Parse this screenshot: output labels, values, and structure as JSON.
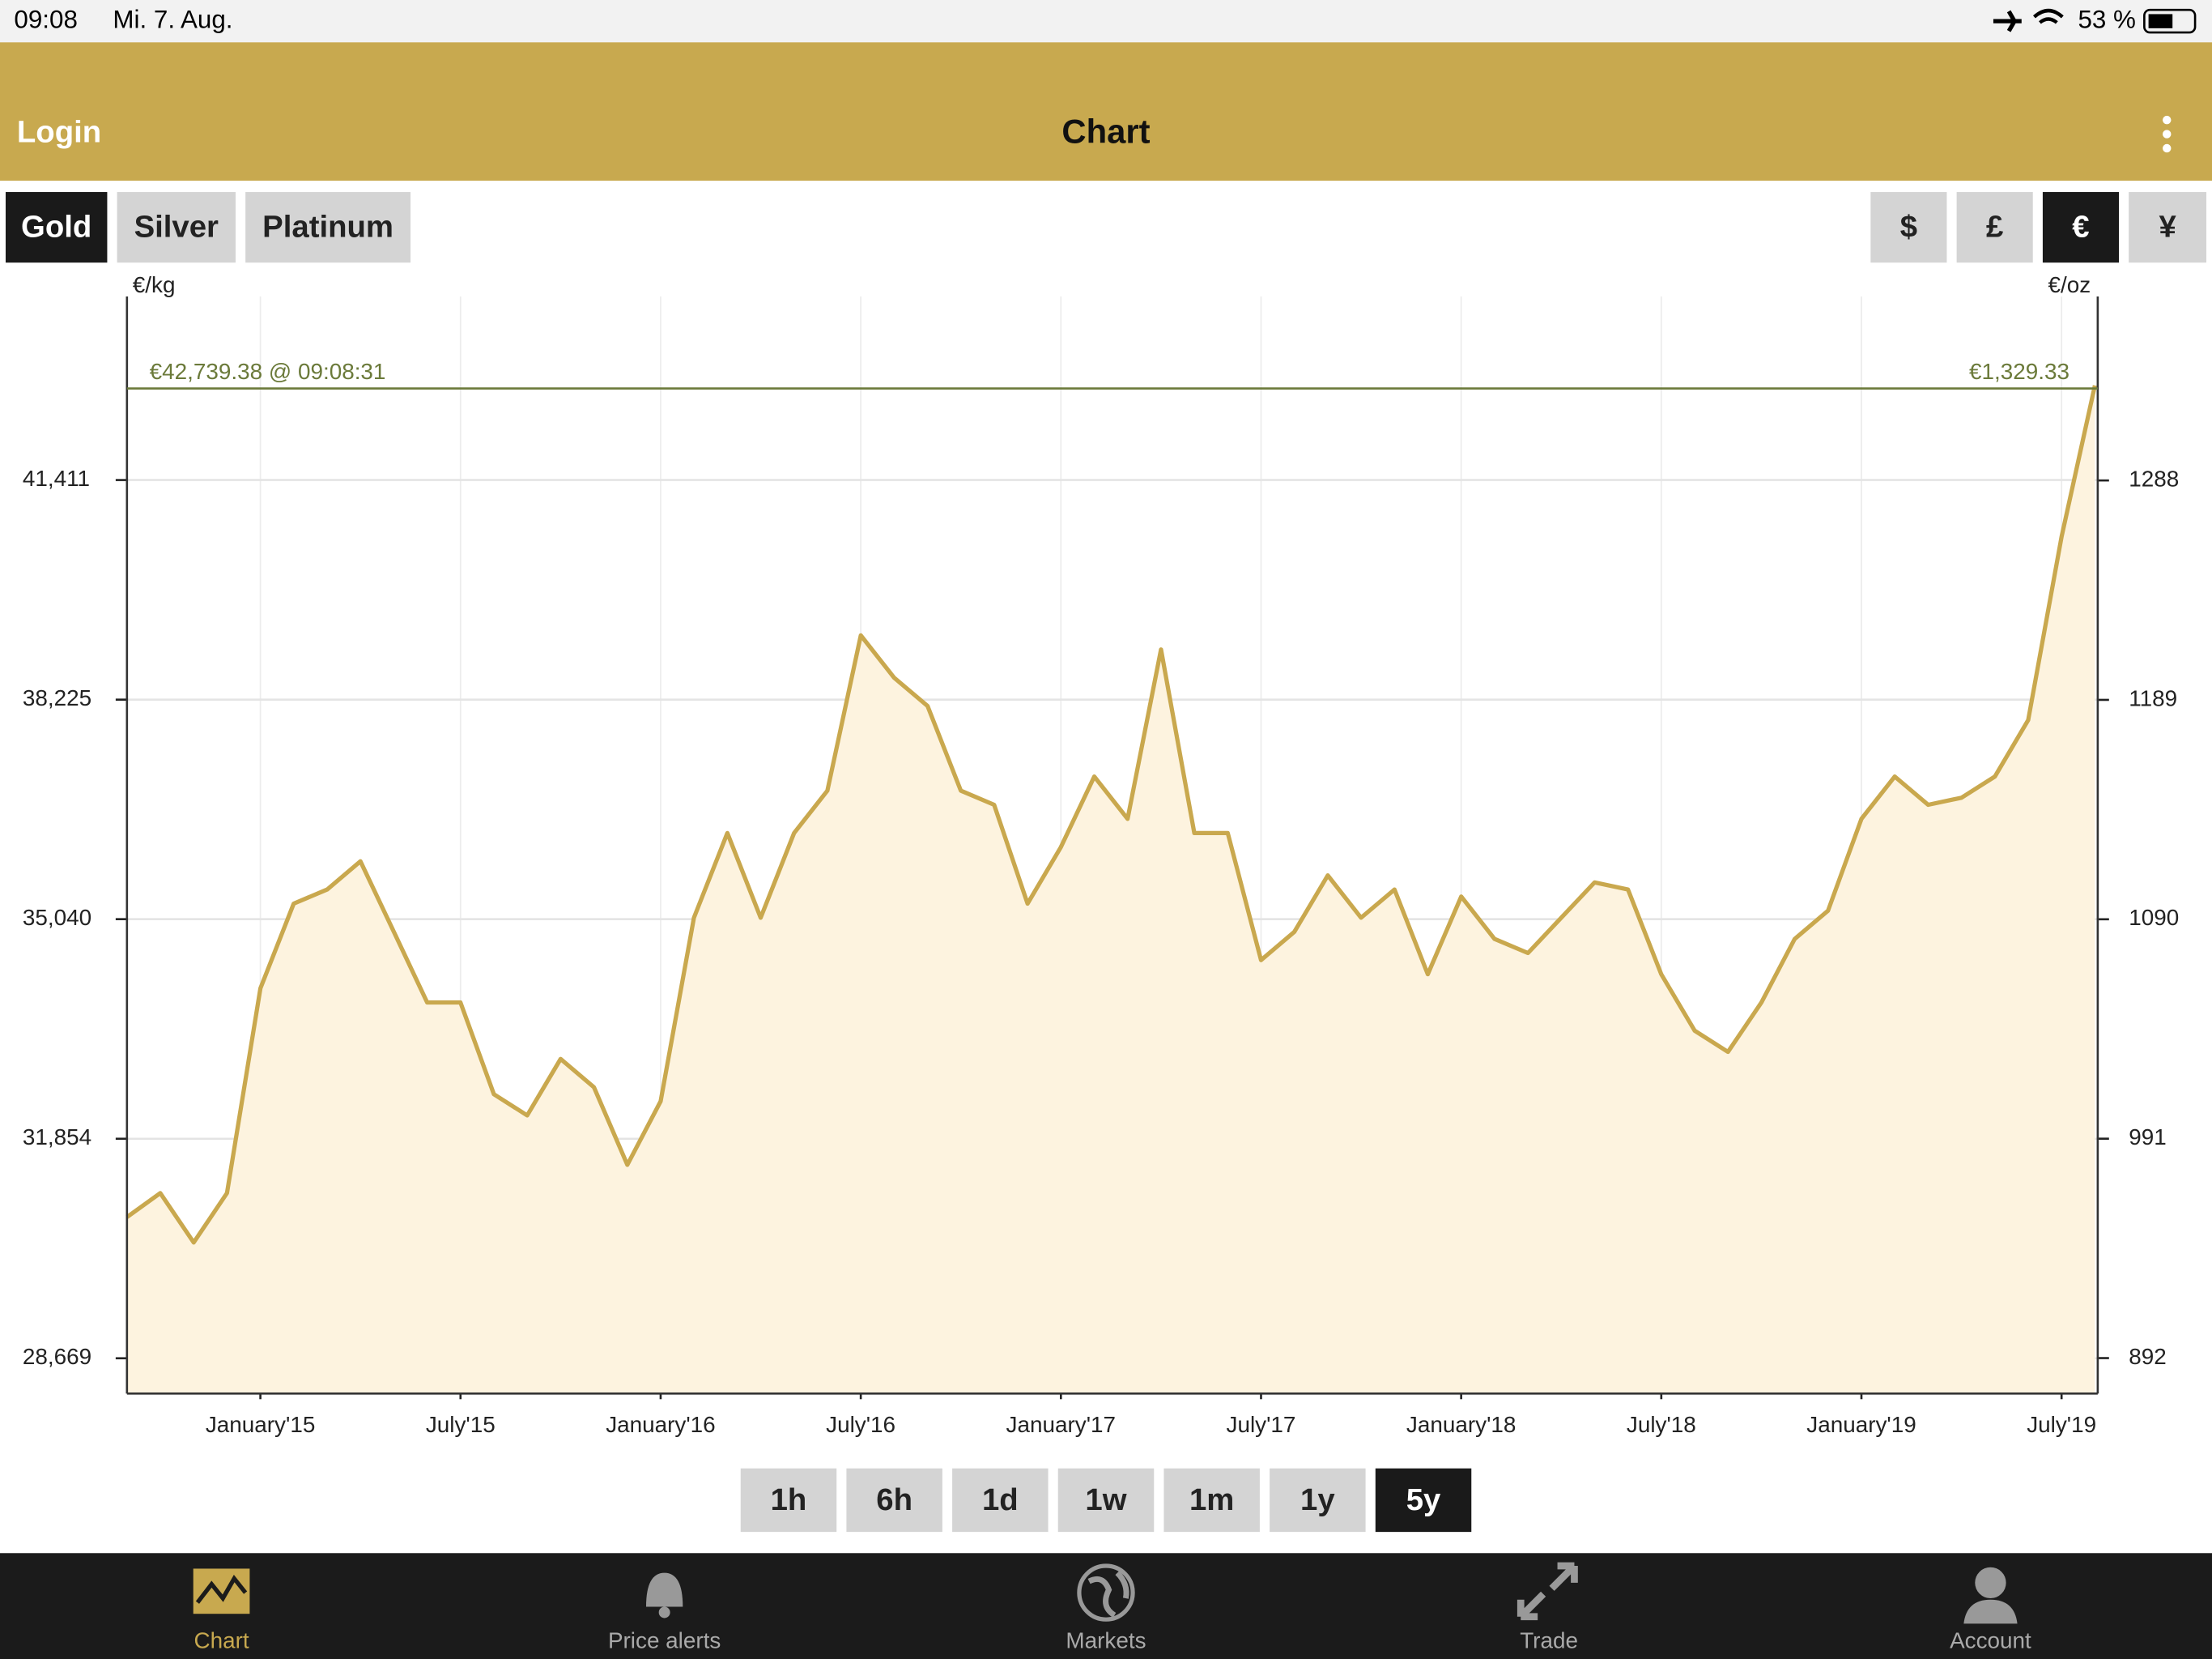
{
  "status_bar": {
    "time": "09:08",
    "date": "Mi. 7. Aug.",
    "battery": "53 %"
  },
  "header": {
    "left": "Login",
    "title": "Chart"
  },
  "metal_tabs": [
    {
      "label": "Gold",
      "selected": true
    },
    {
      "label": "Silver",
      "selected": false
    },
    {
      "label": "Platinum",
      "selected": false
    }
  ],
  "currency_tabs": [
    {
      "label": "$",
      "selected": false
    },
    {
      "label": "£",
      "selected": false
    },
    {
      "label": "€",
      "selected": true
    },
    {
      "label": "¥",
      "selected": false
    }
  ],
  "range_tabs": [
    {
      "label": "1h",
      "selected": false
    },
    {
      "label": "6h",
      "selected": false
    },
    {
      "label": "1d",
      "selected": false
    },
    {
      "label": "1w",
      "selected": false
    },
    {
      "label": "1m",
      "selected": false
    },
    {
      "label": "1y",
      "selected": false
    },
    {
      "label": "5y",
      "selected": true
    }
  ],
  "nav": [
    {
      "label": "Chart",
      "selected": true
    },
    {
      "label": "Price alerts",
      "selected": false
    },
    {
      "label": "Markets",
      "selected": false
    },
    {
      "label": "Trade",
      "selected": false
    },
    {
      "label": "Account",
      "selected": false
    }
  ],
  "chart_data": {
    "type": "line",
    "y_label": "€/kg",
    "y2_label": "€/oz",
    "current": {
      "value": 42739.38,
      "label": "€42,739.38 @ 09:08:31"
    },
    "current_right_label": "€1,329.33",
    "x": [
      "2014-09",
      "2014-10",
      "2014-11",
      "2014-12",
      "2015-01",
      "2015-02",
      "2015-03",
      "2015-04",
      "2015-05",
      "2015-06",
      "2015-07",
      "2015-08",
      "2015-09",
      "2015-10",
      "2015-11",
      "2015-12",
      "2016-01",
      "2016-02",
      "2016-03",
      "2016-04",
      "2016-05",
      "2016-06",
      "2016-07",
      "2016-08",
      "2016-09",
      "2016-10",
      "2016-11",
      "2016-12",
      "2017-01",
      "2017-02",
      "2017-03",
      "2017-04",
      "2017-05",
      "2017-06",
      "2017-07",
      "2017-08",
      "2017-09",
      "2017-10",
      "2017-11",
      "2017-12",
      "2018-01",
      "2018-02",
      "2018-03",
      "2018-04",
      "2018-05",
      "2018-06",
      "2018-07",
      "2018-08",
      "2018-09",
      "2018-10",
      "2018-11",
      "2018-12",
      "2019-01",
      "2019-02",
      "2019-03",
      "2019-04",
      "2019-05",
      "2019-06",
      "2019-07",
      "2019-08"
    ],
    "series": [
      {
        "name": "Gold",
        "color": "#c9a84e",
        "fill": "#fdf3df",
        "values": [
          30718,
          31066,
          30349,
          31066,
          34036,
          35266,
          35470,
          35880,
          34856,
          33831,
          33831,
          32500,
          32193,
          33012,
          32603,
          31476,
          32397,
          35061,
          36290,
          35061,
          36290,
          36905,
          39158,
          38543,
          38134,
          36905,
          36700,
          35266,
          36085,
          37109,
          36495,
          38953,
          36290,
          36290,
          34446,
          34856,
          35675,
          35061,
          35470,
          34241,
          35368,
          34753,
          34549,
          35061,
          35573,
          35470,
          34241,
          33422,
          33114,
          33831,
          34753,
          35163,
          36495,
          37109,
          36700,
          36802,
          37109,
          37929,
          40592,
          42784
        ]
      }
    ],
    "xlim": [
      "2014-09",
      "2019-08"
    ],
    "xticks": [
      {
        "value": "2015-01",
        "label": "January'15"
      },
      {
        "value": "2015-07",
        "label": "July'15"
      },
      {
        "value": "2016-01",
        "label": "January'16"
      },
      {
        "value": "2016-07",
        "label": "July'16"
      },
      {
        "value": "2017-01",
        "label": "January'17"
      },
      {
        "value": "2017-07",
        "label": "July'17"
      },
      {
        "value": "2018-01",
        "label": "January'18"
      },
      {
        "value": "2018-07",
        "label": "July'18"
      },
      {
        "value": "2019-01",
        "label": "January'19"
      },
      {
        "value": "2019-07",
        "label": "July'19"
      }
    ],
    "ylim": [
      28157,
      44074
    ],
    "yticks": [
      {
        "value": 28669,
        "label": "28,669"
      },
      {
        "value": 31854,
        "label": "31,854"
      },
      {
        "value": 35040,
        "label": "35,040"
      },
      {
        "value": 38225,
        "label": "38,225"
      },
      {
        "value": 41411,
        "label": "41,411"
      }
    ],
    "y2lim": [
      876,
      1371
    ],
    "y2ticks": [
      892,
      991,
      1090,
      1189,
      1288
    ],
    "grid": true
  }
}
